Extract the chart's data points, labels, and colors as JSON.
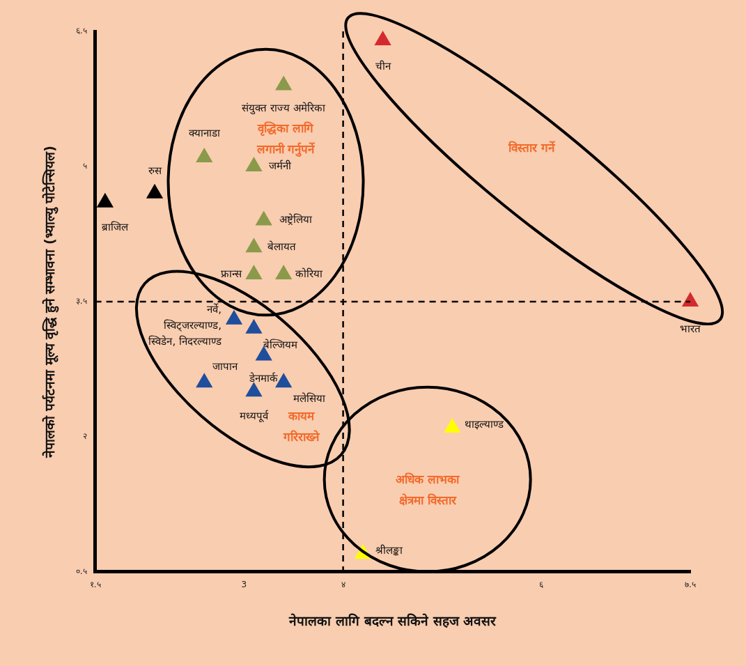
{
  "chart_data": {
    "type": "scatter",
    "xlabel": "नेपालका लागि बदल्न सकिने सहज अवसर",
    "ylabel": "नेपालको पर्यटनमा मूल्य वृद्धि हुने सम्भावना (भ्याल्यु पोटेन्सियल)",
    "xlim": [
      1.5,
      7.5
    ],
    "xticks": [
      {
        "value": 1.5,
        "label": "१.५"
      },
      {
        "value": 3,
        "label": "3"
      },
      {
        "value": 4,
        "label": "४"
      },
      {
        "value": 6,
        "label": "६"
      },
      {
        "value": 7.5,
        "label": "७.५"
      }
    ],
    "ylim": [
      0.5,
      6.5
    ],
    "yticks": [
      {
        "value": 0.5,
        "label": "०.५"
      },
      {
        "value": 2,
        "label": "२"
      },
      {
        "value": 3.5,
        "label": "३.५"
      },
      {
        "value": 5,
        "label": "५"
      },
      {
        "value": 6.5,
        "label": "६.५"
      }
    ],
    "grid": false,
    "legend": false,
    "marker": "triangle",
    "series": [
      {
        "color": "#000000",
        "x": [
          1.6,
          2.1
        ],
        "values": [
          4.6,
          4.7
        ]
      },
      {
        "color": "#8a9a4a",
        "x": [
          3.4,
          2.6,
          3.1,
          3.2,
          3.1,
          3.1,
          3.4
        ],
        "values": [
          5.9,
          5.1,
          5.0,
          4.4,
          4.1,
          3.8,
          3.8
        ]
      },
      {
        "color": "#1f4e9c",
        "x": [
          2.9,
          3.1,
          3.2,
          2.6,
          3.1,
          3.4
        ],
        "values": [
          3.3,
          3.2,
          2.9,
          2.6,
          2.5,
          2.6
        ]
      },
      {
        "color": "#d42a2f",
        "x": [
          4.4,
          7.5
        ],
        "values": [
          6.4,
          3.5
        ]
      },
      {
        "color": "#ffff00",
        "x": [
          5.1,
          4.2
        ],
        "values": [
          2.1,
          0.7
        ]
      }
    ],
    "ref_lines": [
      {
        "axis": "x",
        "value": 4,
        "color": "#000000",
        "line_style": "dashed"
      },
      {
        "axis": "y",
        "value": 3.5,
        "color": "#000000",
        "line_style": "dashed"
      }
    ],
    "annotations": [
      {
        "text": "ब्राजिल",
        "x": 1.6,
        "y": 4.6
      },
      {
        "text": "रुस",
        "x": 2.1,
        "y": 4.7
      },
      {
        "text": "संयुक्त राज्य अमेरिका",
        "x": 3.4,
        "y": 5.9
      },
      {
        "text": "क्यानाडा",
        "x": 2.6,
        "y": 5.1
      },
      {
        "text": "जर्मनी",
        "x": 3.1,
        "y": 5.0
      },
      {
        "text": "अष्ट्रेलिया",
        "x": 3.2,
        "y": 4.4
      },
      {
        "text": "बेलायत",
        "x": 3.1,
        "y": 4.1
      },
      {
        "text": "फ्रान्स",
        "x": 3.1,
        "y": 3.8
      },
      {
        "text": "कोरिया",
        "x": 3.4,
        "y": 3.8
      },
      {
        "text": "नर्वे,\nस्विट्जरल्याण्ड,\nस्विडेन, निदरल्याण्ड",
        "x": 2.9,
        "y": 3.3
      },
      {
        "text": "बेल्जियम",
        "x": 3.1,
        "y": 3.2
      },
      {
        "text": "डेनमार्क",
        "x": 3.2,
        "y": 2.9
      },
      {
        "text": "जापान",
        "x": 2.6,
        "y": 2.6
      },
      {
        "text": "मध्यपूर्व",
        "x": 3.1,
        "y": 2.5
      },
      {
        "text": "मलेसिया",
        "x": 3.4,
        "y": 2.6
      },
      {
        "text": "चीन",
        "x": 4.4,
        "y": 6.4
      },
      {
        "text": "भारत",
        "x": 7.5,
        "y": 3.5
      },
      {
        "text": "थाइल्याण्ड",
        "x": 5.1,
        "y": 2.1
      },
      {
        "text": "श्रीलङ्का",
        "x": 4.2,
        "y": 0.7
      },
      "वृद्धिका लागि\nलगानी गर्नुपर्ने",
      "कायम\nगरिराख्ने",
      "विस्तार गर्ने",
      "अधिक लाभका\nक्षेत्रमा विस्तार"
    ]
  }
}
